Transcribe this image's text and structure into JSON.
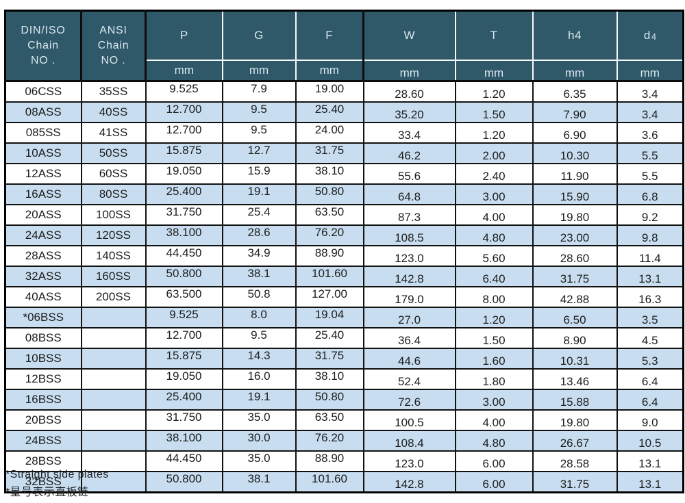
{
  "colors": {
    "header_bg": "#2f5868",
    "header_text": "#d9e7ef",
    "row_alt_bg": "#c8def0",
    "row_bg": "#ffffff",
    "border": "#111111"
  },
  "table": {
    "header": {
      "din_iso": "DIN/ISO\nChain\nNO .",
      "ansi": "ANSI\nChain\nNO .",
      "p": "P",
      "g": "G",
      "f": "F",
      "w": "W",
      "t": "T",
      "h4": "h4",
      "d4_base": "d",
      "d4_sub": "4",
      "unit": "mm"
    },
    "rows": [
      [
        "06CSS",
        "35SS",
        "9.525",
        "7.9",
        "19.00",
        "28.60",
        "1.20",
        "6.35",
        "3.4"
      ],
      [
        "08ASS",
        "40SS",
        "12.700",
        "9.5",
        "25.40",
        "35.20",
        "1.50",
        "7.90",
        "3.4"
      ],
      [
        "085SS",
        "41SS",
        "12.700",
        "9.5",
        "24.00",
        "33.4",
        "1.20",
        "6.90",
        "3.6"
      ],
      [
        "10ASS",
        "50SS",
        "15.875",
        "12.7",
        "31.75",
        "46.2",
        "2.00",
        "10.30",
        "5.5"
      ],
      [
        "12ASS",
        "60SS",
        "19.050",
        "15.9",
        "38.10",
        "55.6",
        "2.40",
        "11.90",
        "5.5"
      ],
      [
        "16ASS",
        "80SS",
        "25.400",
        "19.1",
        "50.80",
        "64.8",
        "3.00",
        "15.90",
        "6.8"
      ],
      [
        "20ASS",
        "100SS",
        "31.750",
        "25.4",
        "63.50",
        "87.3",
        "4.00",
        "19.80",
        "9.2"
      ],
      [
        "24ASS",
        "120SS",
        "38.100",
        "28.6",
        "76.20",
        "108.5",
        "4.80",
        "23.00",
        "9.8"
      ],
      [
        "28ASS",
        "140SS",
        "44.450",
        "34.9",
        "88.90",
        "123.0",
        "5.60",
        "28.60",
        "11.4"
      ],
      [
        "32ASS",
        "160SS",
        "50.800",
        "38.1",
        "101.60",
        "142.8",
        "6.40",
        "31.75",
        "13.1"
      ],
      [
        "40ASS",
        "200SS",
        "63.500",
        "50.8",
        "127.00",
        "179.0",
        "8.00",
        "42.88",
        "16.3"
      ],
      [
        "*06BSS",
        "",
        "9.525",
        "8.0",
        "19.04",
        "27.0",
        "1.20",
        "6.50",
        "3.5"
      ],
      [
        "08BSS",
        "",
        "12.700",
        "9.5",
        "25.40",
        "36.4",
        "1.50",
        "8.90",
        "4.5"
      ],
      [
        "10BSS",
        "",
        "15.875",
        "14.3",
        "31.75",
        "44.6",
        "1.60",
        "10.31",
        "5.3"
      ],
      [
        "12BSS",
        "",
        "19.050",
        "16.0",
        "38.10",
        "52.4",
        "1.80",
        "13.46",
        "6.4"
      ],
      [
        "16BSS",
        "",
        "25.400",
        "19.1",
        "50.80",
        "72.6",
        "3.00",
        "15.88",
        "6.4"
      ],
      [
        "20BSS",
        "",
        "31.750",
        "35.0",
        "63.50",
        "100.5",
        "4.00",
        "19.80",
        "9.0"
      ],
      [
        "24BSS",
        "",
        "38.100",
        "30.0",
        "76.20",
        "108.4",
        "4.80",
        "26.67",
        "10.5"
      ],
      [
        "28BSS",
        "",
        "44.450",
        "35.0",
        "88.90",
        "123.0",
        "6.00",
        "28.58",
        "13.1"
      ],
      [
        "32BSS",
        "",
        "50.800",
        "38.1",
        "101.60",
        "142.8",
        "6.00",
        "31.75",
        "13.1"
      ]
    ]
  },
  "footnotes": [
    "*Straight side plates",
    "*星号表示直板链"
  ]
}
